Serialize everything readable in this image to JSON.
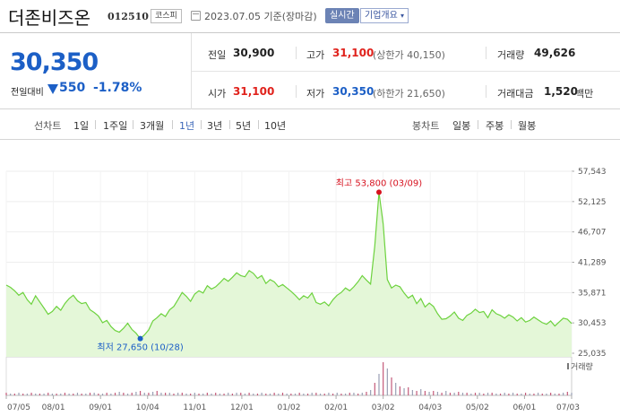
{
  "header": {
    "name": "더존비즈온",
    "code": "012510",
    "market": "코스피",
    "date": "2023.07.05 기준(장마감)",
    "realtime": "실시간",
    "company_info": "기업개요"
  },
  "summary": {
    "price": "30,350",
    "change_label": "전일대비",
    "change_value": "550",
    "change_pct": "-1.78%",
    "prev_label": "전일",
    "prev_value": "30,900",
    "high_label": "고가",
    "high_value": "31,100",
    "high_limit": "(상한가 40,150)",
    "volume_label": "거래량",
    "volume_value": "49,626",
    "open_label": "시가",
    "open_value": "31,100",
    "low_label": "저가",
    "low_value": "30,350",
    "low_limit": "(하한가 21,650)",
    "amount_label": "거래대금",
    "amount_value": "1,520",
    "amount_unit": "백만"
  },
  "periods": {
    "line_label": "선차트",
    "line_items": [
      "1일",
      "1주일",
      "3개월",
      "1년",
      "3년",
      "5년",
      "10년"
    ],
    "selected": "1년",
    "candle_label": "봉차트",
    "candle_items": [
      "일봉",
      "주봉",
      "월봉"
    ]
  },
  "chart_data": {
    "type": "area",
    "y_ticks": [
      "57,543",
      "52,125",
      "46,707",
      "41,289",
      "35,871",
      "30,453",
      "25,035"
    ],
    "ylim": [
      25035,
      57543
    ],
    "x_ticks": [
      "07/05",
      "08/01",
      "09/01",
      "10/04",
      "11/01",
      "12/01",
      "01/02",
      "02/01",
      "03/02",
      "04/03",
      "05/02",
      "06/01",
      "07/03"
    ],
    "max_label": "최고 53,800 (03/09)",
    "min_label": "최저 27,650 (10/28)",
    "max_value": 53800,
    "min_value": 27650,
    "volume_label": "거래량",
    "line_color": "#6dd23e",
    "fill_color": "#e4f7d8",
    "values": [
      37200,
      36800,
      36200,
      35400,
      35900,
      34600,
      33800,
      35300,
      34200,
      33100,
      32000,
      32500,
      33400,
      32700,
      33900,
      34800,
      35400,
      34400,
      33900,
      34100,
      32800,
      32300,
      31700,
      30500,
      30900,
      29800,
      29100,
      28800,
      29500,
      30400,
      29300,
      28600,
      27650,
      28300,
      29200,
      30800,
      31400,
      32100,
      31600,
      32800,
      33400,
      34600,
      35900,
      35200,
      34300,
      35600,
      36200,
      35800,
      37100,
      36500,
      36900,
      37600,
      38400,
      37900,
      38600,
      39400,
      38900,
      38700,
      39800,
      39300,
      38400,
      38900,
      37500,
      38200,
      37800,
      36900,
      37300,
      36700,
      36100,
      35400,
      34600,
      35300,
      34900,
      35800,
      34100,
      33800,
      34200,
      33500,
      34600,
      35400,
      35900,
      36700,
      36200,
      36900,
      37800,
      38900,
      38100,
      37400,
      44200,
      53800,
      48100,
      38200,
      36700,
      37200,
      36900,
      35800,
      34900,
      35400,
      33900,
      34800,
      33300,
      34000,
      33400,
      32100,
      31100,
      31200,
      31700,
      32400,
      31300,
      30900,
      31800,
      32200,
      32900,
      32300,
      32500,
      31400,
      32800,
      32100,
      31800,
      31300,
      31900,
      31500,
      30800,
      31400,
      30600,
      30900,
      31500,
      31000,
      30500,
      30200,
      30800,
      29900,
      30600,
      31300,
      31100,
      30350
    ],
    "volume": [
      3,
      2,
      2,
      3,
      2,
      2,
      3,
      2,
      2,
      2,
      3,
      2,
      2,
      2,
      3,
      2,
      2,
      3,
      2,
      2,
      3,
      3,
      2,
      2,
      3,
      2,
      3,
      4,
      3,
      2,
      3,
      4,
      5,
      3,
      3,
      4,
      5,
      3,
      3,
      3,
      2,
      3,
      3,
      2,
      2,
      3,
      2,
      2,
      3,
      2,
      3,
      2,
      2,
      3,
      2,
      3,
      3,
      2,
      3,
      2,
      2,
      3,
      2,
      2,
      3,
      2,
      3,
      2,
      2,
      2,
      3,
      2,
      2,
      3,
      3,
      2,
      2,
      3,
      2,
      3,
      2,
      2,
      3,
      3,
      2,
      3,
      4,
      6,
      14,
      24,
      37,
      30,
      20,
      14,
      10,
      8,
      9,
      6,
      5,
      7,
      5,
      4,
      5,
      4,
      3,
      5,
      3,
      3,
      4,
      3,
      3,
      2,
      3,
      3,
      2,
      3,
      3,
      2,
      2,
      3,
      2,
      3,
      2,
      2,
      3,
      2,
      2,
      3,
      2,
      2,
      3,
      2,
      2,
      3,
      4,
      3
    ]
  }
}
